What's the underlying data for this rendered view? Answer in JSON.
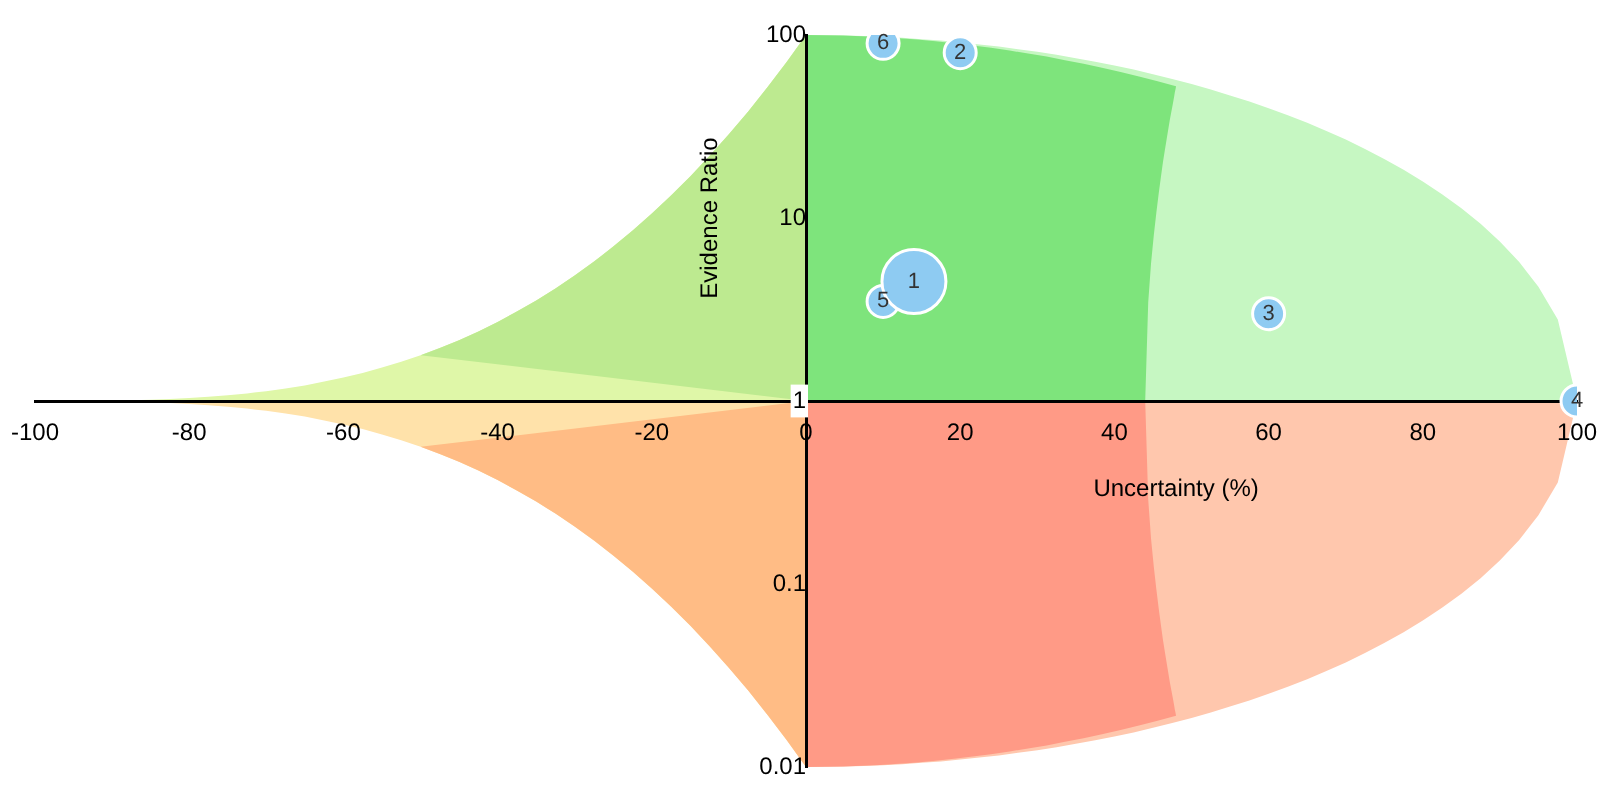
{
  "chart_data": {
    "type": "bubble",
    "xlabel": "Uncertainty (%)",
    "ylabel": "Evidence Ratio",
    "series": [
      {
        "name": "1",
        "color": "#8ecbf2",
        "x": [
          14
        ],
        "values": [
          4.5
        ],
        "sizes": [
          1
        ]
      },
      {
        "name": "2",
        "color": "#8ecbf2",
        "x": [
          20
        ],
        "values": [
          80
        ],
        "sizes": [
          0.25
        ]
      },
      {
        "name": "3",
        "color": "#8ecbf2",
        "x": [
          60
        ],
        "values": [
          3
        ],
        "sizes": [
          0.25
        ]
      },
      {
        "name": "4",
        "color": "#8ecbf2",
        "x": [
          100
        ],
        "values": [
          1
        ],
        "sizes": [
          0.25
        ]
      },
      {
        "name": "5",
        "color": "#8ecbf2",
        "x": [
          10
        ],
        "values": [
          3.5
        ],
        "sizes": [
          0.25
        ]
      },
      {
        "name": "6",
        "color": "#8ecbf2",
        "x": [
          10
        ],
        "values": [
          90
        ],
        "sizes": [
          0.25
        ]
      }
    ],
    "xlim": [
      -100,
      100
    ],
    "xticks": [
      -100,
      -80,
      -60,
      -40,
      -20,
      0,
      20,
      40,
      60,
      80,
      100
    ],
    "ylim": [
      0.01,
      100
    ],
    "yticks": [
      0.01,
      0.1,
      1,
      10,
      100
    ],
    "log": "y",
    "grid": false,
    "legend": false
  }
}
